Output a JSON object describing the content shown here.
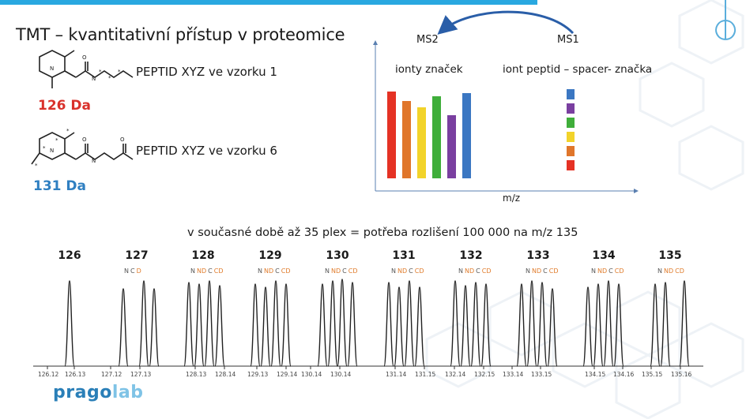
{
  "title": "TMT – kvantitativní přístup v proteomice",
  "left": {
    "mass_1": "126 Da",
    "mass_2": "131 Da",
    "peptide_1": "PEPTID XYZ ve vzorku 1",
    "peptide_2": "PEPTID XYZ ve vzorku 6"
  },
  "spectrum": {
    "ms2": "MS2",
    "ms1": "MS1",
    "reporter_label": "ionty značek",
    "precursor_label": "iont peptid – spacer- značka",
    "xlabel": "m/z",
    "colors": [
      "#e53224",
      "#e0762b",
      "#f2d32a",
      "#3fae3a",
      "#7a3fa0",
      "#3b77c2"
    ]
  },
  "headline": "v současné době až 35 plex = potřeba rozlišení 100 000 na m/z 135",
  "plex": {
    "channels": [
      "126",
      "127",
      "128",
      "129",
      "130",
      "131",
      "132",
      "133",
      "134",
      "135"
    ],
    "sublabels": [
      [],
      [
        "N",
        "C",
        "D"
      ],
      [
        "N",
        "ND",
        "C",
        "CD"
      ],
      [
        "N",
        "ND",
        "C",
        "CD"
      ],
      [
        "N",
        "ND",
        "C",
        "CD"
      ],
      [
        "N",
        "ND",
        "C",
        "CD"
      ],
      [
        "N",
        "ND",
        "C",
        "CD"
      ],
      [
        "N",
        "ND",
        "C",
        "CD"
      ],
      [
        "N",
        "ND",
        "C",
        "CD"
      ],
      [
        "N",
        "ND",
        "CD"
      ]
    ],
    "ticks": [
      "126.12",
      "126.13",
      "127.12",
      "127.13",
      "128.13",
      "128.14",
      "129.13",
      "129.14",
      "130.14",
      "130.14",
      "131.14",
      "131.15",
      "132.14",
      "132.15",
      "133.14",
      "133.15",
      "134.15",
      "134.16",
      "135.15",
      "135.16"
    ]
  },
  "logo": {
    "part1": "prago",
    "part2": "lab"
  }
}
